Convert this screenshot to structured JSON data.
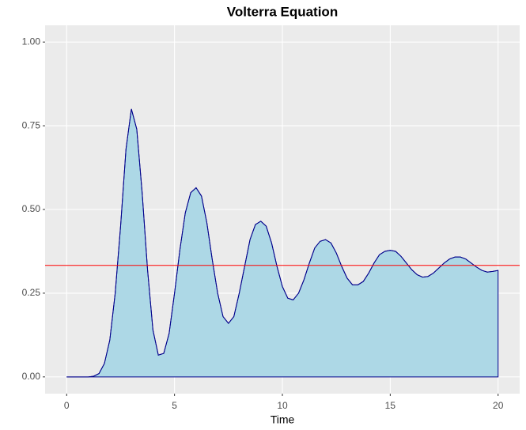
{
  "chart_data": {
    "type": "area",
    "title": "Volterra Equation",
    "x_label": "Time",
    "x": [
      0,
      0.25,
      0.5,
      0.75,
      1,
      1.25,
      1.5,
      1.75,
      2,
      2.25,
      2.5,
      2.75,
      3,
      3.25,
      3.5,
      3.75,
      4,
      4.25,
      4.5,
      4.75,
      5,
      5.25,
      5.5,
      5.75,
      6,
      6.25,
      6.5,
      6.75,
      7,
      7.25,
      7.5,
      7.75,
      8,
      8.25,
      8.5,
      8.75,
      9,
      9.25,
      9.5,
      9.75,
      10,
      10.25,
      10.5,
      10.75,
      11,
      11.25,
      11.5,
      11.75,
      12,
      12.25,
      12.5,
      12.75,
      13,
      13.25,
      13.5,
      13.75,
      14,
      14.25,
      14.5,
      14.75,
      15,
      15.25,
      15.5,
      15.75,
      16,
      16.25,
      16.5,
      16.75,
      17,
      17.25,
      17.5,
      17.75,
      18,
      18.25,
      18.5,
      18.75,
      19,
      19.25,
      19.5,
      19.75,
      20
    ],
    "values": [
      0,
      0,
      0,
      0,
      0,
      0.002,
      0.01,
      0.04,
      0.11,
      0.25,
      0.45,
      0.68,
      0.8,
      0.74,
      0.55,
      0.32,
      0.14,
      0.065,
      0.07,
      0.13,
      0.25,
      0.38,
      0.49,
      0.55,
      0.565,
      0.54,
      0.46,
      0.35,
      0.25,
      0.18,
      0.16,
      0.18,
      0.25,
      0.33,
      0.41,
      0.455,
      0.465,
      0.45,
      0.4,
      0.33,
      0.27,
      0.235,
      0.23,
      0.25,
      0.29,
      0.34,
      0.385,
      0.405,
      0.41,
      0.4,
      0.37,
      0.33,
      0.295,
      0.275,
      0.275,
      0.285,
      0.31,
      0.34,
      0.365,
      0.375,
      0.378,
      0.375,
      0.36,
      0.34,
      0.32,
      0.305,
      0.298,
      0.3,
      0.31,
      0.325,
      0.34,
      0.352,
      0.358,
      0.358,
      0.352,
      0.34,
      0.328,
      0.318,
      0.313,
      0.315,
      0.318
    ],
    "fill_color": "#add8e6",
    "line_color": "#00008b",
    "reference_line": {
      "y": 0.333,
      "color": "#ff0000"
    },
    "xlim": [
      -1,
      21
    ],
    "ylim": [
      -0.05,
      1.05
    ],
    "xticks": [
      0,
      5,
      10,
      15,
      20
    ],
    "yticks": [
      {
        "value": 0,
        "label": "0.00"
      },
      {
        "value": 0.25,
        "label": "0.25"
      },
      {
        "value": 0.5,
        "label": "0.50"
      },
      {
        "value": 0.75,
        "label": "0.75"
      },
      {
        "value": 1,
        "label": "1.00"
      }
    ],
    "grid": true
  }
}
